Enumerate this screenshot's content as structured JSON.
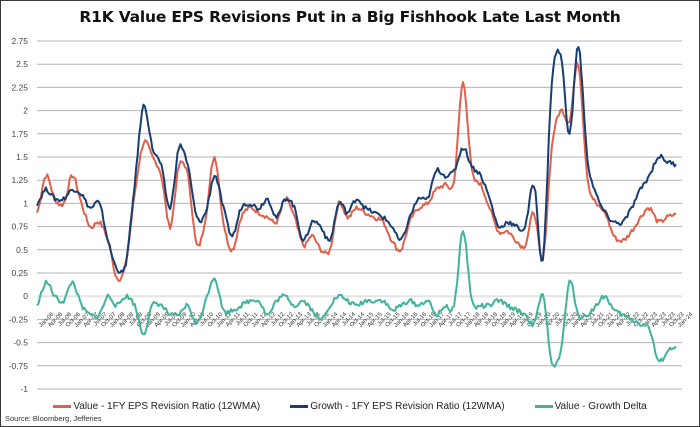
{
  "chart_data": {
    "type": "line",
    "title": "R1K Value EPS Revisions Put in a Big Fishhook Late Last Month",
    "xlabel": "",
    "ylabel": "",
    "ylim": [
      -1,
      2.75
    ],
    "yticks": [
      2.75,
      2.5,
      2.25,
      2,
      1.75,
      1.5,
      1.25,
      1,
      0.75,
      0.5,
      0.25,
      0,
      -0.25,
      -0.5,
      -0.75,
      -1
    ],
    "ytick_labels": [
      "2.75",
      "2.5",
      "2.25",
      "2",
      "1.75",
      "1.5",
      "1.25",
      "1",
      "0.75",
      "0.5",
      "0.25",
      "0",
      "-0.25",
      "-0.5",
      "-0.75",
      "-1"
    ],
    "grid": true,
    "legend_position": "bottom",
    "x": [
      "Jan-06",
      "Apr-06",
      "Jul-06",
      "Oct-06",
      "Jan-07",
      "Apr-07",
      "Jul-07",
      "Oct-07",
      "Jan-08",
      "Apr-08",
      "Jul-08",
      "Oct-08",
      "Jan-09",
      "Apr-09",
      "Jul-09",
      "Oct-09",
      "Jan-10",
      "Apr-10",
      "Jul-10",
      "Oct-10",
      "Jan-11",
      "Apr-11",
      "Jul-11",
      "Oct-11",
      "Jan-12",
      "Apr-12",
      "Jul-12",
      "Oct-12",
      "Jan-13",
      "Apr-13",
      "Jul-13",
      "Oct-13",
      "Jan-14",
      "Apr-14",
      "Jul-14",
      "Oct-14",
      "Jan-15",
      "Apr-15",
      "Jul-15",
      "Oct-15",
      "Jan-16",
      "Apr-16",
      "Jul-16",
      "Oct-16",
      "Jan-17",
      "Apr-17",
      "Jul-17",
      "Oct-17",
      "Jan-18",
      "Apr-18",
      "Jul-18",
      "Oct-18",
      "Jan-19",
      "Apr-19",
      "Jul-19",
      "Oct-19",
      "Jan-20",
      "Apr-20",
      "Jul-20",
      "Oct-20",
      "Jan-21",
      "Apr-21",
      "Jul-21",
      "Oct-21",
      "Jan-22",
      "Apr-22",
      "Jul-22",
      "Oct-22",
      "Jan-23",
      "Apr-23",
      "Jul-23",
      "Oct-23",
      "Jan-24"
    ],
    "series": [
      {
        "name": "Value - 1FY EPS Revision Ratio (12WMA)",
        "color": "#e0604a",
        "values": [
          0.9,
          1.3,
          1.05,
          1.0,
          1.3,
          1.0,
          0.75,
          0.8,
          0.6,
          0.2,
          0.35,
          1.1,
          1.65,
          1.5,
          1.3,
          0.75,
          1.4,
          1.3,
          0.55,
          0.85,
          1.5,
          0.8,
          0.5,
          0.85,
          0.95,
          0.9,
          0.85,
          0.8,
          1.05,
          0.85,
          0.55,
          0.65,
          0.5,
          0.5,
          1.0,
          0.85,
          0.95,
          0.9,
          0.85,
          0.8,
          0.6,
          0.5,
          0.8,
          0.95,
          1.0,
          1.15,
          1.2,
          1.25,
          2.3,
          1.35,
          1.2,
          0.95,
          0.7,
          0.7,
          0.6,
          0.55,
          0.9,
          0.4,
          1.6,
          2.0,
          1.9,
          2.5,
          1.3,
          1.0,
          0.9,
          0.65,
          0.6,
          0.7,
          0.85,
          0.95,
          0.8,
          0.85,
          0.88
        ]
      },
      {
        "name": "Growth - 1FY EPS Revision Ratio (12WMA)",
        "color": "#163e73",
        "values": [
          1.0,
          1.15,
          1.05,
          1.05,
          1.15,
          1.1,
          0.95,
          1.0,
          0.6,
          0.3,
          0.35,
          1.2,
          2.05,
          1.6,
          1.4,
          0.95,
          1.6,
          1.4,
          0.85,
          0.9,
          1.3,
          0.95,
          0.65,
          0.95,
          1.0,
          0.95,
          1.05,
          0.85,
          1.05,
          0.95,
          0.6,
          0.8,
          0.75,
          0.6,
          1.0,
          0.9,
          1.05,
          0.95,
          0.9,
          0.85,
          0.75,
          0.6,
          0.85,
          1.05,
          1.05,
          1.35,
          1.3,
          1.35,
          1.6,
          1.4,
          1.3,
          1.05,
          0.75,
          0.8,
          0.75,
          0.75,
          1.2,
          0.4,
          2.3,
          2.6,
          1.75,
          2.7,
          1.5,
          1.1,
          0.9,
          0.8,
          0.8,
          0.95,
          1.15,
          1.3,
          1.5,
          1.45,
          1.42
        ]
      },
      {
        "name": "Value - Growth Delta",
        "color": "#3fb39b",
        "values": [
          -0.1,
          0.15,
          0.0,
          -0.05,
          0.15,
          -0.1,
          -0.2,
          -0.2,
          0.0,
          -0.1,
          0.0,
          -0.1,
          -0.4,
          -0.1,
          -0.1,
          -0.2,
          -0.2,
          -0.1,
          -0.3,
          -0.05,
          0.2,
          -0.15,
          -0.15,
          -0.1,
          -0.05,
          -0.05,
          -0.2,
          -0.05,
          0.0,
          -0.1,
          -0.05,
          -0.15,
          -0.25,
          -0.1,
          0.0,
          -0.05,
          -0.1,
          -0.05,
          -0.05,
          -0.05,
          -0.15,
          -0.1,
          -0.05,
          -0.1,
          -0.05,
          -0.2,
          -0.1,
          -0.1,
          0.7,
          -0.05,
          -0.1,
          -0.1,
          -0.05,
          -0.1,
          -0.15,
          -0.2,
          -0.3,
          0.0,
          -0.7,
          -0.6,
          0.15,
          -0.2,
          -0.2,
          -0.1,
          0.0,
          -0.15,
          -0.2,
          -0.25,
          -0.3,
          -0.35,
          -0.7,
          -0.6,
          -0.54
        ]
      }
    ]
  },
  "legend": {
    "value_label": "Value - 1FY EPS Revision Ratio (12WMA)",
    "growth_label": "Growth - 1FY EPS Revision Ratio (12WMA)",
    "delta_label": "Value - Growth Delta"
  },
  "source": "Source: Bloomberg, Jefferies"
}
